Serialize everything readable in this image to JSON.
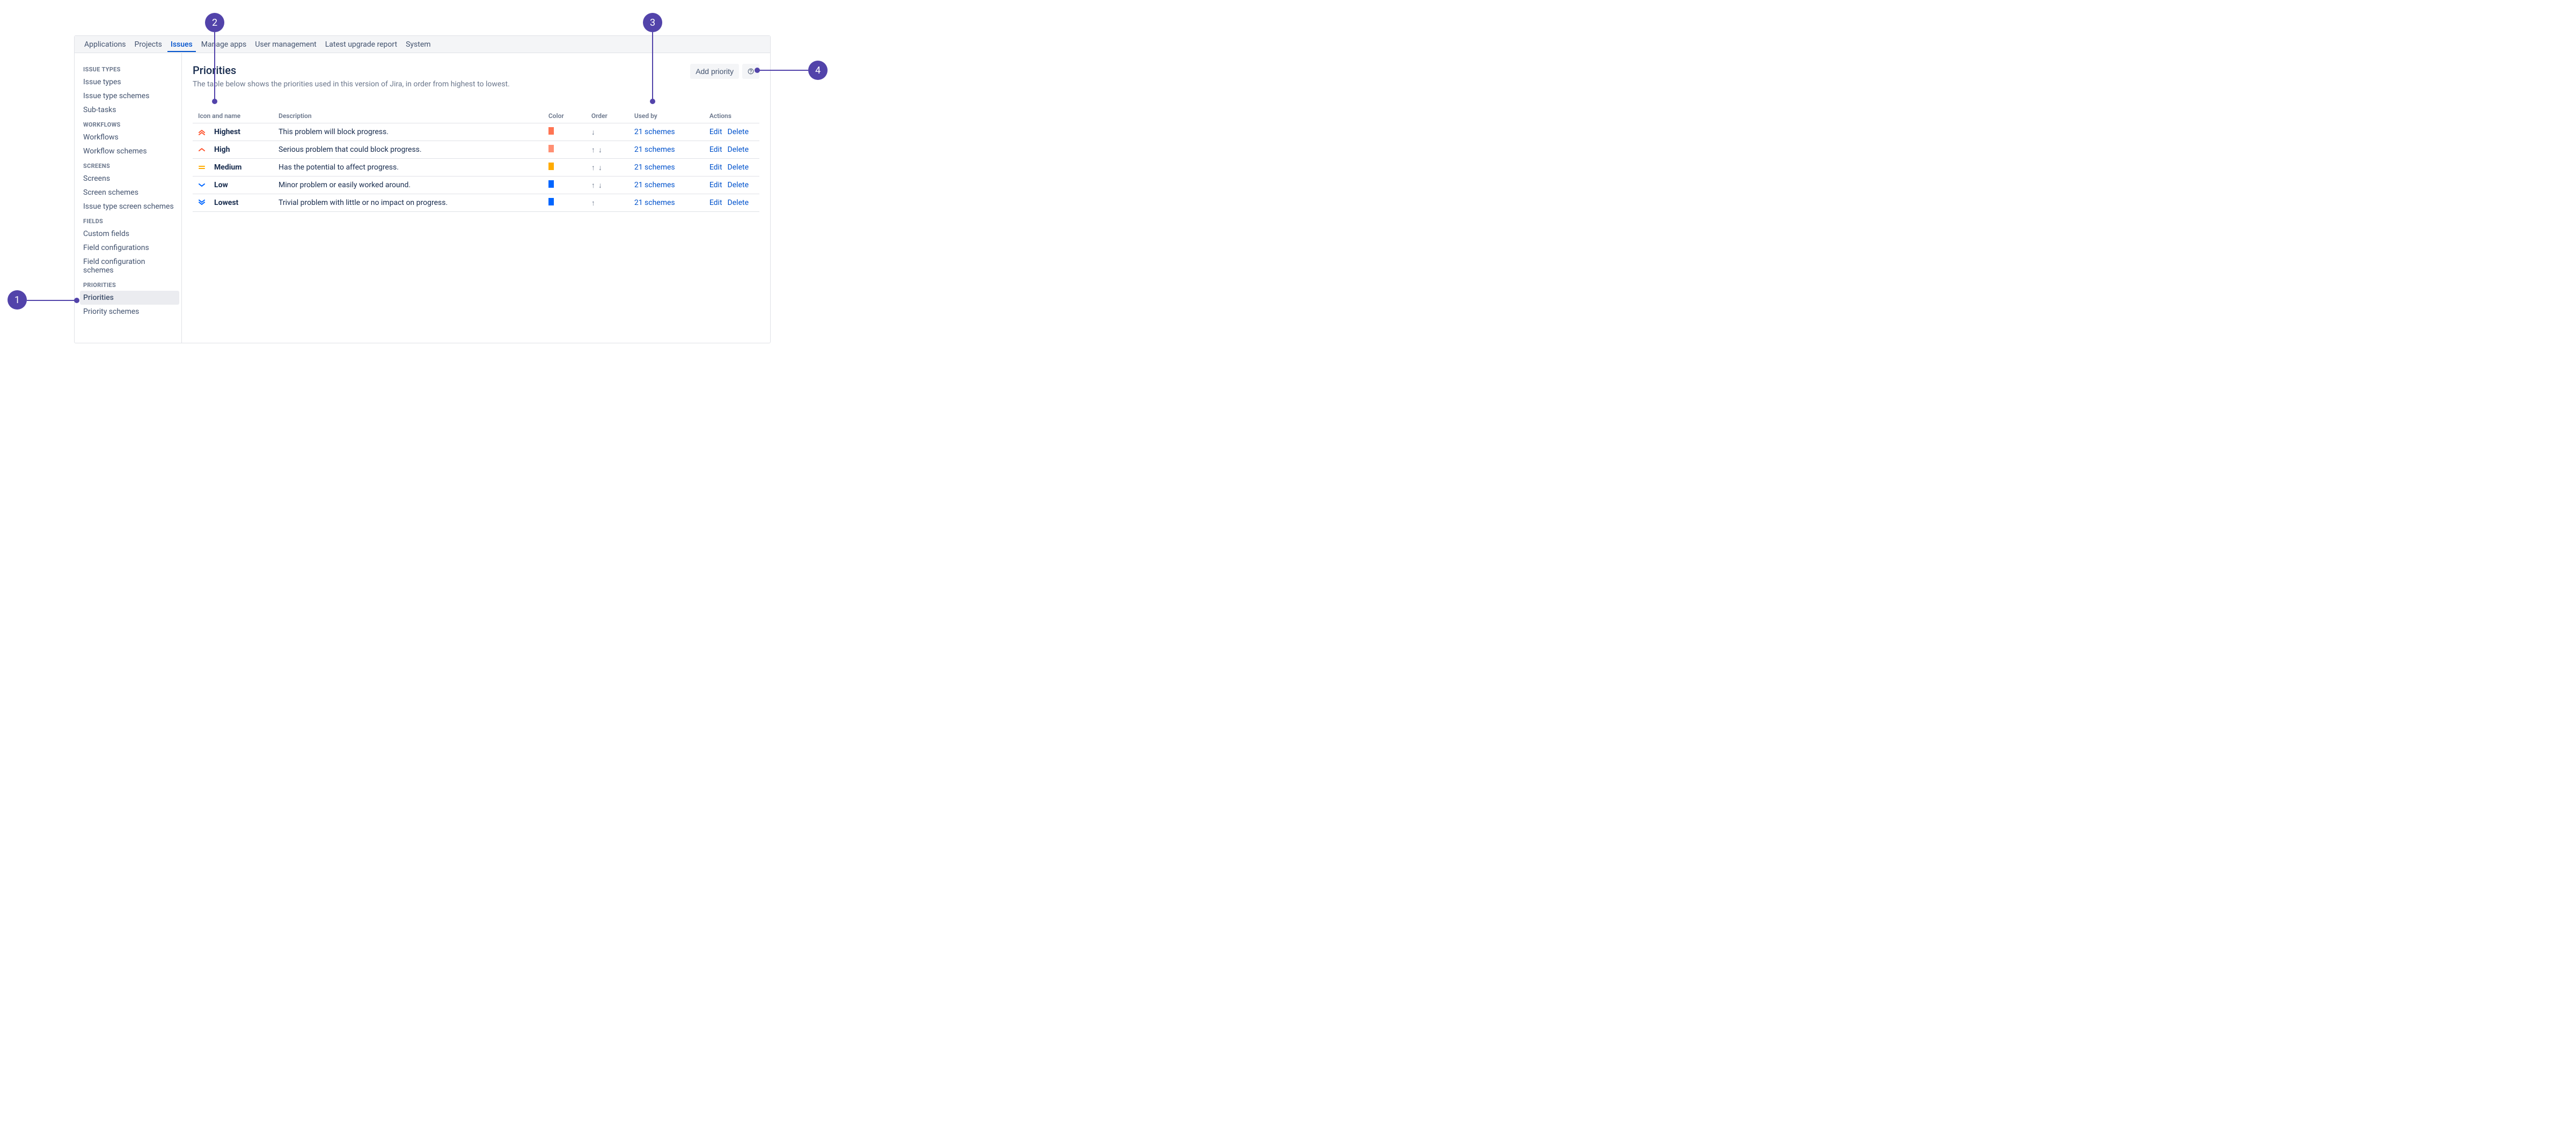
{
  "callouts": [
    "1",
    "2",
    "3",
    "4"
  ],
  "topnav": [
    {
      "label": "Applications",
      "active": false
    },
    {
      "label": "Projects",
      "active": false
    },
    {
      "label": "Issues",
      "active": true
    },
    {
      "label": "Manage apps",
      "active": false
    },
    {
      "label": "User management",
      "active": false
    },
    {
      "label": "Latest upgrade report",
      "active": false
    },
    {
      "label": "System",
      "active": false
    }
  ],
  "sidebar": [
    {
      "title": "ISSUE TYPES",
      "items": [
        {
          "label": "Issue types"
        },
        {
          "label": "Issue type schemes"
        },
        {
          "label": "Sub-tasks"
        }
      ]
    },
    {
      "title": "WORKFLOWS",
      "items": [
        {
          "label": "Workflows"
        },
        {
          "label": "Workflow schemes"
        }
      ]
    },
    {
      "title": "SCREENS",
      "items": [
        {
          "label": "Screens"
        },
        {
          "label": "Screen schemes"
        },
        {
          "label": "Issue type screen schemes"
        }
      ]
    },
    {
      "title": "FIELDS",
      "items": [
        {
          "label": "Custom fields"
        },
        {
          "label": "Field configurations"
        },
        {
          "label": "Field configuration schemes"
        }
      ]
    },
    {
      "title": "PRIORITIES",
      "items": [
        {
          "label": "Priorities",
          "active": true
        },
        {
          "label": "Priority schemes"
        }
      ]
    }
  ],
  "page": {
    "title": "Priorities",
    "subtitle": "The table below shows the priorities used in this version of Jira, in order from highest to lowest.",
    "add_button": "Add priority"
  },
  "table": {
    "headers": {
      "icon_name": "Icon and name",
      "description": "Description",
      "color": "Color",
      "order": "Order",
      "used_by": "Used by",
      "actions": "Actions"
    },
    "rows": [
      {
        "name": "Highest",
        "icon": "double-up",
        "icon_color": "#ff5630",
        "description": "This problem will block progress.",
        "color": "#ff7452",
        "order": "down",
        "used_by": "21 schemes",
        "edit": "Edit",
        "delete": "Delete"
      },
      {
        "name": "High",
        "icon": "single-up",
        "icon_color": "#ff5630",
        "description": "Serious problem that could block progress.",
        "color": "#ff8f73",
        "order": "updown",
        "used_by": "21 schemes",
        "edit": "Edit",
        "delete": "Delete"
      },
      {
        "name": "Medium",
        "icon": "equals",
        "icon_color": "#ffab00",
        "description": "Has the potential to affect progress.",
        "color": "#ffab00",
        "order": "updown",
        "used_by": "21 schemes",
        "edit": "Edit",
        "delete": "Delete"
      },
      {
        "name": "Low",
        "icon": "single-down",
        "icon_color": "#0065ff",
        "description": "Minor problem or easily worked around.",
        "color": "#0065ff",
        "order": "updown",
        "used_by": "21 schemes",
        "edit": "Edit",
        "delete": "Delete"
      },
      {
        "name": "Lowest",
        "icon": "double-down",
        "icon_color": "#0065ff",
        "description": "Trivial problem with little or no impact on progress.",
        "color": "#0065ff",
        "order": "up",
        "used_by": "21 schemes",
        "edit": "Edit",
        "delete": "Delete"
      }
    ]
  }
}
